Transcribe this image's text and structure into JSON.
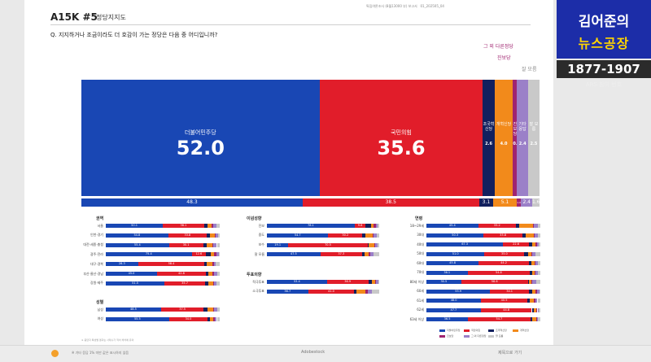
{
  "header": {
    "title": "A15K #5",
    "subtitle": "정당지지도",
    "meta": "특집여론조사 (8월13000 부) 보고서",
    "meta_date": "01_202505_04",
    "question": "Q. 지지하거나 조금이라도 더 호감이 가는 정당은 다음 중 어디입니까?"
  },
  "colors": {
    "democratic": "#1947b4",
    "ppp": "#e11d2a",
    "rebuild": "#12205e",
    "reform": "#f28a1b",
    "progressive": "#a02470",
    "other": "#9b80c8",
    "dontknow": "#c9c9c9"
  },
  "chart_data": [
    {
      "type": "bar",
      "stacked": true,
      "orientation": "horizontal",
      "categories": [
        "더불어민주당",
        "국민의힘",
        "조국혁신당",
        "개혁신당",
        "진보당",
        "그 외 다른정당",
        "잘 모름"
      ],
      "series": [
        {
          "values": [
            52.0,
            35.6,
            2.6,
            4.0,
            0.9,
            2.4,
            2.5
          ]
        }
      ],
      "top_callouts": [
        "그 외 다른정당",
        "진보당",
        "잘 모름"
      ],
      "side_labels": [
        "기타",
        "응답"
      ]
    },
    {
      "type": "bar",
      "stacked": true,
      "orientation": "horizontal",
      "categories": [
        "더불어민주당",
        "국민의힘",
        "조국혁신당",
        "개혁신당",
        "진보당",
        "그 외 다른정당",
        "잘 모름"
      ],
      "series": [
        {
          "values": [
            48.3,
            38.5,
            3.1,
            5.1,
            1.0,
            2.4,
            1.6
          ]
        }
      ]
    }
  ],
  "panels": [
    {
      "title": "권역",
      "rows": [
        {
          "label": "서울",
          "values": [
            50.1,
            36.1,
            3,
            4,
            1,
            3,
            2.8
          ]
        },
        {
          "label": "인천·경기",
          "values": [
            54.8,
            33.8,
            3,
            4,
            1,
            2,
            1.4
          ]
        },
        {
          "label": "대전·세종·충청",
          "values": [
            55.4,
            30.1,
            3,
            5,
            1,
            3,
            2.5
          ]
        },
        {
          "label": "광주·전라",
          "values": [
            75.4,
            12.6,
            4,
            3,
            2,
            2,
            1.0
          ]
        },
        {
          "label": "대구·경북",
          "values": [
            28.3,
            58.4,
            2,
            5,
            1,
            2,
            3.3
          ]
        },
        {
          "label": "부산·울산·경남",
          "values": [
            45.0,
            42.8,
            2,
            4,
            1,
            3,
            2.2
          ]
        },
        {
          "label": "강원·제주",
          "values": [
            51.5,
            35.7,
            3,
            4,
            1,
            2,
            2.8
          ]
        }
      ]
    },
    {
      "title": "성별",
      "rows": [
        {
          "label": "남성",
          "values": [
            48.5,
            37.5,
            3,
            5,
            1,
            3,
            2.0
          ]
        },
        {
          "label": "여성",
          "values": [
            55.5,
            34.0,
            2,
            3,
            1,
            2,
            2.5
          ]
        }
      ]
    },
    {
      "title": "이념성향",
      "rows": [
        {
          "label": "진보",
          "values": [
            78.1,
            9.8,
            5,
            2,
            2,
            2,
            1.1
          ]
        },
        {
          "label": "중도",
          "values": [
            54.7,
            30.2,
            3,
            6,
            1,
            3,
            2.1
          ]
        },
        {
          "label": "보수",
          "values": [
            19.1,
            70.5,
            1,
            5,
            1,
            2,
            1.4
          ]
        },
        {
          "label": "잘 모름",
          "values": [
            47.5,
            37.3,
            2,
            4,
            1,
            3,
            5.2
          ]
        }
      ]
    },
    {
      "title": "투표의향",
      "rows": [
        {
          "label": "적극투표",
          "values": [
            53.4,
            36.9,
            3,
            3,
            1,
            2,
            0.7
          ]
        },
        {
          "label": "소극투표",
          "values": [
            36.7,
            41.0,
            2,
            8,
            2,
            4,
            6.3
          ]
        }
      ]
    },
    {
      "title": "연령",
      "rows": [
        {
          "label": "18~29세",
          "values": [
            45.4,
            33.2,
            3,
            12,
            1,
            3,
            2.4
          ]
        },
        {
          "label": "30대",
          "values": [
            50.3,
            33.8,
            3,
            7,
            1,
            3,
            1.9
          ]
        },
        {
          "label": "40대",
          "values": [
            67.3,
            22.6,
            3,
            3,
            1,
            2,
            1.1
          ]
        },
        {
          "label": "50대",
          "values": [
            51.0,
            35.0,
            3,
            3,
            1,
            3,
            4.0
          ]
        },
        {
          "label": "60대",
          "values": [
            45.8,
            44.2,
            2,
            3,
            1,
            2,
            2.0
          ]
        },
        {
          "label": "70대",
          "values": [
            36.1,
            54.8,
            2,
            2,
            1,
            2,
            2.1
          ]
        },
        {
          "label": "80세 이상",
          "values": [
            30.5,
            58.6,
            1,
            2,
            1,
            3,
            3.9
          ]
        },
        {
          "label": "60세",
          "values": [
            55.9,
            34.1,
            3,
            3,
            1,
            2,
            1.0
          ]
        },
        {
          "label": "61세",
          "values": [
            48.0,
            40.5,
            2,
            4,
            1,
            2,
            2.5
          ]
        },
        {
          "label": "62세",
          "values": [
            47.7,
            44.8,
            2,
            2,
            1,
            1,
            1.5
          ]
        },
        {
          "label": "63세 이상",
          "values": [
            36.5,
            54.7,
            2,
            3,
            1,
            1,
            1.8
          ]
        }
      ]
    }
  ],
  "legend": {
    "items": [
      "더불어민주당",
      "국민의힘",
      "조국혁신당",
      "개혁신당",
      "진보당",
      "그 외 다른정당",
      "잘 모름"
    ]
  },
  "footnote": "※ 응답자 특성별 결과는 사례수가 적어 해석에 유의",
  "bottombar": {
    "left": "※ 기타 응답 1% 미만 값은 표시하지 않음",
    "mid": "Adobestock",
    "right": "제목으로 가기"
  },
  "branding": {
    "line1": "김어준의",
    "line2": "뉴스공장",
    "phone": "1877-1907",
    "phone_sub": "ARS 참여 번호"
  }
}
